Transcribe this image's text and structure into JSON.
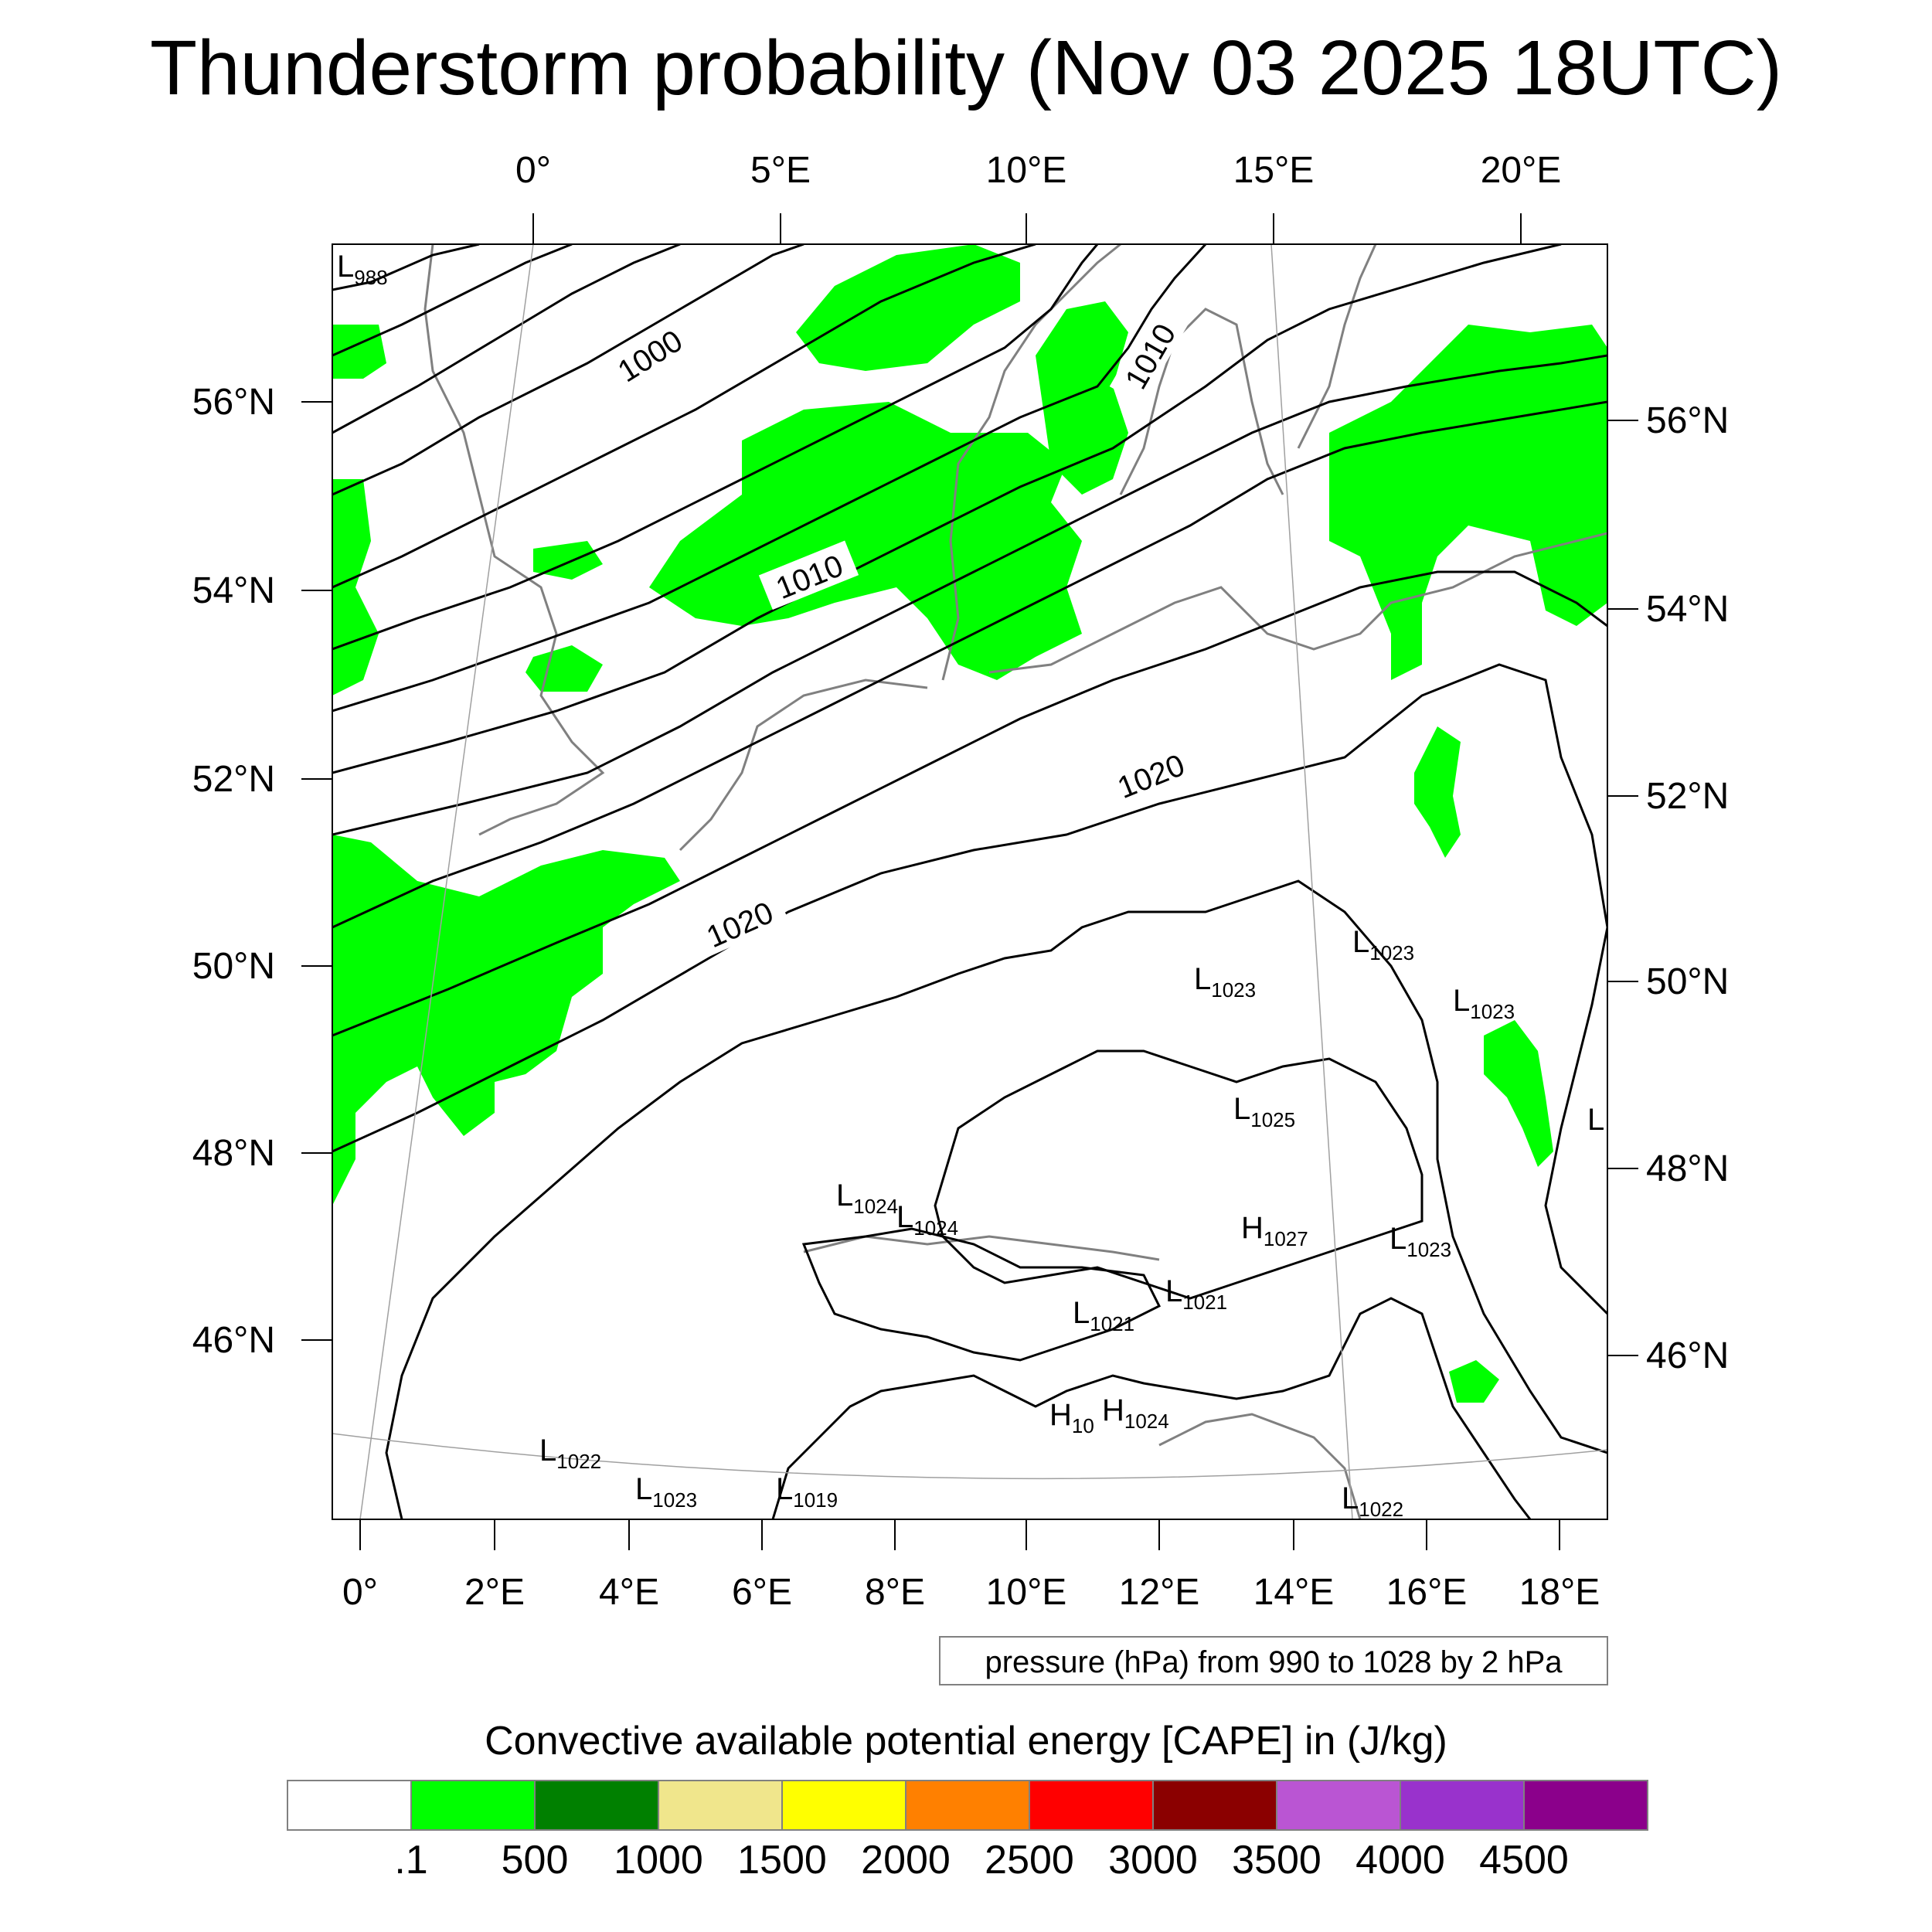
{
  "title": "Thunderstorm probability (Nov 03 2025 18UTC)",
  "map": {
    "top_lon_labels": [
      "0°",
      "5°E",
      "10°E",
      "15°E",
      "20°E"
    ],
    "bottom_lon_labels": [
      "0°",
      "2°E",
      "4°E",
      "6°E",
      "8°E",
      "10°E",
      "12°E",
      "14°E",
      "16°E",
      "18°E"
    ],
    "left_lat_labels": [
      "56°N",
      "54°N",
      "52°N",
      "50°N",
      "48°N",
      "46°N"
    ],
    "right_lat_labels": [
      "56°N",
      "54°N",
      "52°N",
      "50°N",
      "48°N",
      "46°N"
    ],
    "contour_labels": [
      "1000",
      "1010",
      "1010",
      "1020",
      "1020"
    ],
    "pressure_centers": [
      {
        "sym": "L",
        "val": "988"
      },
      {
        "sym": "L",
        "val": "1023"
      },
      {
        "sym": "L",
        "val": "1023"
      },
      {
        "sym": "L",
        "val": "1023"
      },
      {
        "sym": "L",
        "val": "1025"
      },
      {
        "sym": "L",
        "val": "1024"
      },
      {
        "sym": "L",
        "val": "1024"
      },
      {
        "sym": "H",
        "val": "1027"
      },
      {
        "sym": "L",
        "val": "1023"
      },
      {
        "sym": "L",
        "val": "1021"
      },
      {
        "sym": "L",
        "val": "1021"
      },
      {
        "sym": "H",
        "val": "10"
      },
      {
        "sym": "H",
        "val": "1024"
      },
      {
        "sym": "L",
        "val": "1022"
      },
      {
        "sym": "L",
        "val": "1023"
      },
      {
        "sym": "L",
        "val": "1019"
      },
      {
        "sym": "L",
        "val": "1022"
      },
      {
        "sym": "L",
        "val": ""
      }
    ],
    "contour_note": "pressure (hPa) from 990 to 1028 by 2 hPa"
  },
  "colorbar": {
    "title": "Convective available potential energy [CAPE] in (J/kg)",
    "colors": [
      "#ffffff",
      "#00ff00",
      "#008000",
      "#f0e68c",
      "#ffff00",
      "#ff8000",
      "#ff0000",
      "#8b0000",
      "#ba55d3",
      "#9932cc",
      "#8b008b"
    ],
    "labels": [
      ".1",
      "500",
      "1000",
      "1500",
      "2000",
      "2500",
      "3000",
      "3500",
      "4000",
      "4500"
    ]
  },
  "colors": {
    "cape_fill": "#00ff00",
    "coast": "#808080",
    "isobar": "#000000"
  }
}
